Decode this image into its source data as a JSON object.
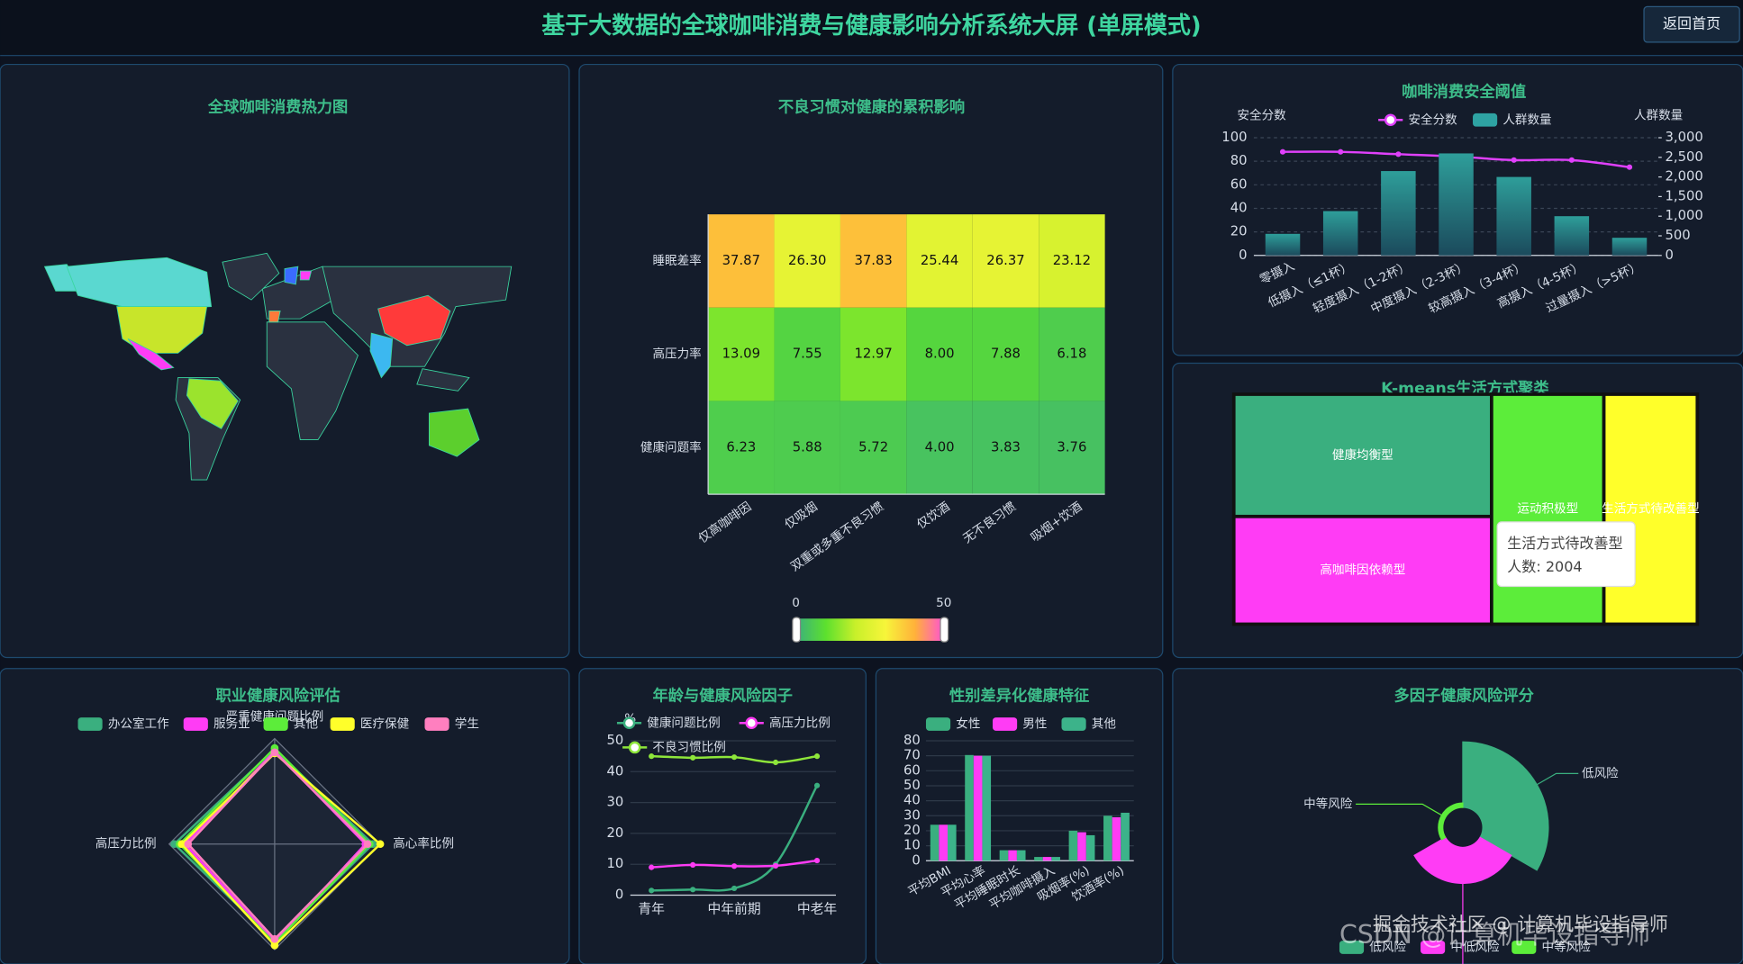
{
  "header": {
    "title": "基于大数据的全球咖啡消费与健康影响分析系统大屏 (单屏模式)",
    "button": "返回首页"
  },
  "watermarks": [
    "掘金技术社区 @ 计算机毕设指导师",
    "CSDN @计算机毕设指导师"
  ],
  "chart_data": [
    {
      "type": "map",
      "title": "全球咖啡消费热力图"
    },
    {
      "type": "heatmap",
      "title": "不良习惯对健康的累积影响",
      "categories": [
        "仅高咖啡因",
        "仅吸烟",
        "双重或多重不良习惯",
        "仅饮酒",
        "无不良习惯",
        "吸烟+饮酒"
      ],
      "rows": [
        "睡眠差率",
        "高压力率",
        "健康问题率"
      ],
      "values": [
        [
          37.87,
          26.3,
          37.83,
          25.44,
          26.37,
          23.12
        ],
        [
          13.09,
          7.55,
          12.97,
          8,
          7.88,
          6.18
        ],
        [
          6.23,
          5.88,
          5.72,
          4,
          3.83,
          3.76
        ]
      ],
      "value_labels": [
        [
          "37.87",
          "26.30",
          "37.83",
          "25.44",
          "26.37",
          "23.12"
        ],
        [
          "13.09",
          "7.55",
          "12.97",
          "8.00",
          "7.88",
          "6.18"
        ],
        [
          "6.23",
          "5.88",
          "5.72",
          "4.00",
          "3.83",
          "3.76"
        ]
      ],
      "visual_map": {
        "range": [
          0,
          50
        ],
        "colors": [
          "#3aaf7f",
          "#5ce02e",
          "#c8f02a",
          "#f7f53a",
          "#ffb13a",
          "#ff4fd8"
        ]
      }
    },
    {
      "type": "combo",
      "title": "咖啡消费安全阈值",
      "y_name": "安全分数",
      "y2_name": "人群数量",
      "categories": [
        "零摄入",
        "低摄入（≤1杯）",
        "轻度摄入（1-2杯）",
        "中度摄入（2-3杯）",
        "较高摄入（3-4杯）",
        "高摄入（4-5杯）",
        "过量摄入（>5杯）"
      ],
      "series": [
        {
          "name": "安全分数",
          "color": "#e040fb",
          "values": [
            88,
            88,
            86,
            84,
            81,
            81,
            75
          ]
        },
        {
          "name": "人群数量",
          "color": "#2ea3a3",
          "axis": "y2",
          "values": [
            550,
            1130,
            2150,
            2600,
            2000,
            1000,
            450
          ]
        }
      ],
      "ylim": [
        0,
        100
      ],
      "yticks": [
        0,
        20,
        40,
        60,
        80,
        100
      ],
      "y2lim": [
        0,
        3000
      ],
      "y2ticks": [
        0,
        500,
        {
          "value": 1000,
          "label": "1,000"
        },
        {
          "value": 1500,
          "label": "1,500"
        },
        {
          "value": 2000,
          "label": "2,000"
        },
        {
          "value": 2500,
          "label": "2,500"
        },
        {
          "value": 3000,
          "label": "3,000"
        }
      ],
      "grid": true
    },
    {
      "type": "treemap",
      "title": "K-means生活方式聚类",
      "categories": [
        "健康均衡型",
        "高咖啡因依赖型",
        "运动积极型",
        "生活方式待改善型"
      ],
      "values": [
        2940,
        2590,
        2410,
        2004
      ],
      "colors": [
        "#3aaf7f",
        "#ff3cf5",
        "#5ced3a",
        "#ffff2a"
      ],
      "tooltip": [
        "生活方式待改善型",
        "人数: 2004"
      ]
    },
    {
      "type": "radar",
      "title": "职业健康风险评估",
      "indicators": [
        "严重健康问题比例",
        "高心率比例",
        null,
        "高压力比例"
      ],
      "rlim": [
        0,
        1
      ],
      "series": [
        {
          "name": "办公室工作",
          "color": "#3aaf7f",
          "values": [
            0.9,
            0.93,
            0.92,
            0.95
          ]
        },
        {
          "name": "服务业",
          "color": "#ff3cf5",
          "values": [
            0.88,
            0.86,
            0.93,
            0.85
          ]
        },
        {
          "name": "其他",
          "color": "#5ced3a",
          "values": [
            0.91,
            0.9,
            0.94,
            0.9
          ]
        },
        {
          "name": "医疗保健",
          "color": "#ffff2a",
          "values": [
            0.86,
            1.0,
            0.96,
            0.88
          ]
        },
        {
          "name": "学生",
          "color": "#ff7fbf",
          "values": [
            0.87,
            0.88,
            0.9,
            0.82
          ]
        }
      ]
    },
    {
      "type": "line",
      "title": "年龄与健康风险因子",
      "y_name": "%",
      "categories": [
        "青年",
        null,
        "中年前期",
        null,
        "中老年"
      ],
      "series": [
        {
          "name": "健康问题比例",
          "color": "#3aaf7f",
          "values": [
            1.5,
            1.8,
            2.2,
            10,
            35.5
          ]
        },
        {
          "name": "高压力比例",
          "color": "#ff3cf5",
          "values": [
            9,
            9.8,
            9.4,
            9.5,
            11.2
          ]
        },
        {
          "name": "不良习惯比例",
          "color": "#8ee63a",
          "values": [
            45,
            44.5,
            44.7,
            43,
            45
          ]
        }
      ],
      "ylim": [
        0,
        50
      ],
      "yticks": [
        0,
        10,
        20,
        30,
        40,
        50
      ],
      "grid": true
    },
    {
      "type": "bar",
      "title": "性别差异化健康特征",
      "categories": [
        "平均BMI",
        "平均心率",
        "平均睡眠时长",
        "平均咖啡摄入",
        "吸烟率(%)",
        "饮酒率(%)"
      ],
      "series": [
        {
          "name": "女性",
          "color": "#3aaf7f",
          "values": [
            24,
            70.5,
            7,
            2.5,
            20,
            30
          ]
        },
        {
          "name": "男性",
          "color": "#ff3cf5",
          "values": [
            24,
            70,
            7,
            2.5,
            19,
            29
          ]
        },
        {
          "name": "其他",
          "color": "#3cb38a",
          "values": [
            24,
            70,
            7,
            2.5,
            17,
            32
          ]
        }
      ],
      "ylim": [
        0,
        80
      ],
      "yticks": [
        0,
        10,
        20,
        30,
        40,
        50,
        60,
        70,
        80
      ],
      "grid": true
    },
    {
      "type": "pie",
      "title": "多因子健康风险评分",
      "rose": true,
      "labels": [
        "低风险",
        "中低风险",
        "中等风险"
      ],
      "values": [
        60,
        33,
        4
      ],
      "colors": [
        "#3aaf7f",
        "#ff3cf5",
        "#5ced3a"
      ]
    }
  ]
}
